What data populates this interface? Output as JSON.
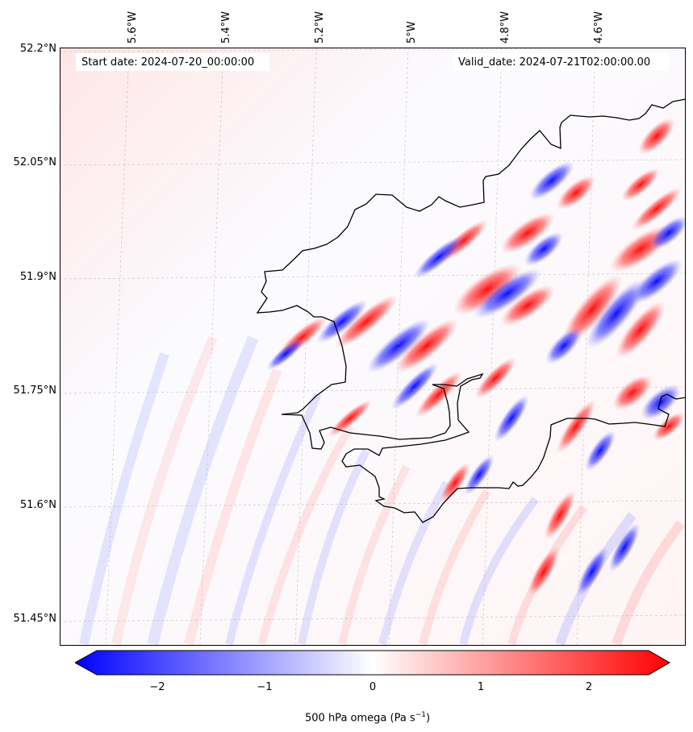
{
  "map": {
    "start_label": "Start date: 2024-07-20_00:00:00",
    "valid_label": "Valid_date: 2024-07-21T02:00:00.00",
    "lat_labels": [
      "52.2°N",
      "52.05°N",
      "51.9°N",
      "51.75°N",
      "51.6°N",
      "51.45°N"
    ],
    "lon_labels": [
      "5.6°W",
      "5.4°W",
      "5.2°W",
      "5°W",
      "4.8°W",
      "4.6°W"
    ],
    "colorbar": {
      "label": "500 hPa omega (Pa s",
      "label_exp": "−1",
      "label_close": ")",
      "ticks": [
        "−2",
        "−1",
        "0",
        "1",
        "2"
      ],
      "colors": {
        "low": "#0000ff",
        "mid": "#ffffff",
        "high": "#ff0000"
      }
    }
  }
}
